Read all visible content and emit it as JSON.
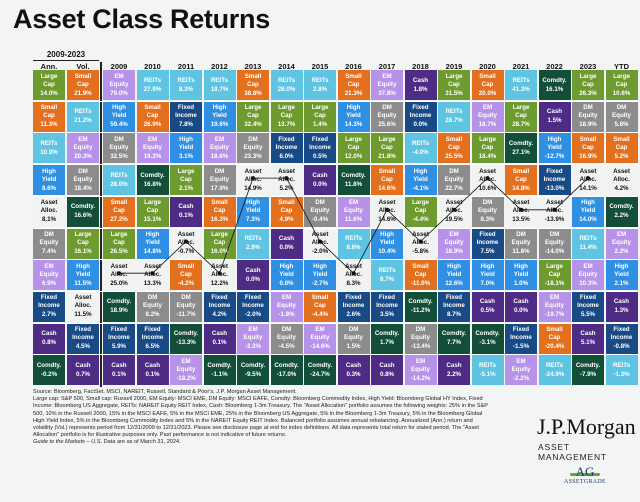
{
  "page": {
    "title": "Asset Class Returns",
    "period_label": "2009-2023",
    "headers": [
      "Ann.",
      "Vol.",
      "2009",
      "2010",
      "2011",
      "2012",
      "2013",
      "2014",
      "2015",
      "2016",
      "2017",
      "2018",
      "2019",
      "2020",
      "2021",
      "2022",
      "2023",
      "YTD"
    ],
    "footnote": {
      "lines": [
        "Source: Bloomberg, FactSet, MSCI, NAREIT, Russell, Standard & Poor's, J.P. Morgan Asset Management.",
        "Large cap: S&P 500, Small cap: Russell 2000, EM Equity: MSCI EME, DM Equity: MSCI EAFE, Comdty: Bloomberg Commodity Index, High Yield: Bloomberg Global HY Index, Fixed Income: Bloomberg US Aggregate, REITs: NAREIT Equity REIT Index, Cash: Bloomberg 1-3m Treasury. The \"Asset Allocation\" portfolio assumes the following weights: 25% in the S&P 500, 10% in the Russell 2000, 15% in the MSCI EAFE, 5% in the MSCI EME, 25% in the Bloomberg US Aggregate, 5% in the Bloomberg 1-3m Treasury, 5% in the Bloomberg Global High Yield Index, 5% in the Bloomberg Commodity Index and 5% in the NAREIT Equity REIT Index. Balanced portfolio assumes annual rebalancing. Annualized (Ann.) return and volatility (Vol.) represents period from 12/31/2009 to 12/31/2023. Please see disclosure page at end for index definitions. All data represents total return for stated period. The \"Asset Allocation\" portfolio is for illustrative purposes only. Past performance is not indicative of future returns."
      ],
      "guide": "Guide to the Markets – U.S.",
      "asof": " Data are as of March 31, 2024."
    },
    "brand": {
      "name": "J.P.Morgan",
      "sub": "ASSET MANAGEMENT"
    },
    "watermark": {
      "mark": "AG",
      "name": "ASSETGRADE"
    }
  },
  "colors": {
    "Large Cap": "#6e9b30",
    "Small Cap": "#e2701f",
    "EM Equity": "#b692e8",
    "REITs": "#5fc3e2",
    "High Yield": "#2f8fe3",
    "Fixed Income": "#184a86",
    "DM Equity": "#8c8c8c",
    "Cash": "#4e2c85",
    "Comdty.": "#134f38",
    "Asset Alloc.": "#f1f2f2"
  },
  "chart_data": {
    "type": "table",
    "title": "Asset Class Returns",
    "columns": [
      "Ann.",
      "Vol.",
      "2009",
      "2010",
      "2011",
      "2012",
      "2013",
      "2014",
      "2015",
      "2016",
      "2017",
      "2018",
      "2019",
      "2020",
      "2021",
      "2022",
      "2023",
      "YTD"
    ],
    "rank_columns": [
      [
        [
          "Large Cap",
          "14.0%"
        ],
        [
          "Small Cap",
          "11.3%"
        ],
        [
          "REITs",
          "10.9%"
        ],
        [
          "High Yield",
          "8.6%"
        ],
        [
          "Asset Alloc.",
          "8.1%"
        ],
        [
          "DM Equity",
          "7.4%"
        ],
        [
          "EM Equity",
          "6.9%"
        ],
        [
          "Fixed Income",
          "2.7%"
        ],
        [
          "Cash",
          "0.8%"
        ],
        [
          "Comdty.",
          "-0.2%"
        ]
      ],
      [
        [
          "Small Cap",
          "21.9%"
        ],
        [
          "REITs",
          "21.2%"
        ],
        [
          "EM Equity",
          "20.3%"
        ],
        [
          "DM Equity",
          "18.4%"
        ],
        [
          "Comdty.",
          "16.6%"
        ],
        [
          "Large Cap",
          "16.1%"
        ],
        [
          "High Yield",
          "11.5%"
        ],
        [
          "Asset Alloc.",
          "11.5%"
        ],
        [
          "Fixed Income",
          "4.5%"
        ],
        [
          "Cash",
          "0.7%"
        ]
      ],
      [
        [
          "EM Equity",
          "79.0%"
        ],
        [
          "High Yield",
          "59.4%"
        ],
        [
          "DM Equity",
          "32.5%"
        ],
        [
          "REITs",
          "28.0%"
        ],
        [
          "Small Cap",
          "27.2%"
        ],
        [
          "Large Cap",
          "26.5%"
        ],
        [
          "Asset Alloc.",
          "25.0%"
        ],
        [
          "Comdty.",
          "18.9%"
        ],
        [
          "Fixed Income",
          "5.9%"
        ],
        [
          "Cash",
          "0.1%"
        ]
      ],
      [
        [
          "REITs",
          "27.9%"
        ],
        [
          "Small Cap",
          "26.9%"
        ],
        [
          "EM Equity",
          "19.2%"
        ],
        [
          "Comdty.",
          "16.8%"
        ],
        [
          "Large Cap",
          "15.1%"
        ],
        [
          "High Yield",
          "14.8%"
        ],
        [
          "Asset Alloc.",
          "13.3%"
        ],
        [
          "DM Equity",
          "8.2%"
        ],
        [
          "Fixed Income",
          "6.5%"
        ],
        [
          "Cash",
          "0.1%"
        ]
      ],
      [
        [
          "REITs",
          "8.3%"
        ],
        [
          "Fixed Income",
          "7.8%"
        ],
        [
          "High Yield",
          "3.1%"
        ],
        [
          "Large Cap",
          "2.1%"
        ],
        [
          "Cash",
          "0.1%"
        ],
        [
          "Asset Alloc.",
          "-0.7%"
        ],
        [
          "Small Cap",
          "-4.2%"
        ],
        [
          "DM Equity",
          "-11.7%"
        ],
        [
          "Comdty.",
          "-13.3%"
        ],
        [
          "EM Equity",
          "-18.2%"
        ]
      ],
      [
        [
          "REITs",
          "19.7%"
        ],
        [
          "High Yield",
          "19.6%"
        ],
        [
          "EM Equity",
          "18.6%"
        ],
        [
          "DM Equity",
          "17.9%"
        ],
        [
          "Small Cap",
          "16.3%"
        ],
        [
          "Large Cap",
          "16.0%"
        ],
        [
          "Asset Alloc.",
          "12.2%"
        ],
        [
          "Fixed Income",
          "4.2%"
        ],
        [
          "Cash",
          "0.1%"
        ],
        [
          "Comdty.",
          "-1.1%"
        ]
      ],
      [
        [
          "Small Cap",
          "38.8%"
        ],
        [
          "Large Cap",
          "32.4%"
        ],
        [
          "DM Equity",
          "23.3%"
        ],
        [
          "Asset Alloc.",
          "14.9%"
        ],
        [
          "High Yield",
          "7.3%"
        ],
        [
          "REITs",
          "2.9%"
        ],
        [
          "Cash",
          "0.0%"
        ],
        [
          "Fixed Income",
          "-2.0%"
        ],
        [
          "EM Equity",
          "-2.3%"
        ],
        [
          "Comdty.",
          "-9.5%"
        ]
      ],
      [
        [
          "REITs",
          "28.0%"
        ],
        [
          "Large Cap",
          "13.7%"
        ],
        [
          "Fixed Income",
          "6.0%"
        ],
        [
          "Asset Alloc.",
          "5.2%"
        ],
        [
          "Small Cap",
          "4.9%"
        ],
        [
          "Cash",
          "0.0%"
        ],
        [
          "High Yield",
          "0.0%"
        ],
        [
          "EM Equity",
          "-1.8%"
        ],
        [
          "DM Equity",
          "-4.5%"
        ],
        [
          "Comdty.",
          "-17.0%"
        ]
      ],
      [
        [
          "REITs",
          "2.8%"
        ],
        [
          "Large Cap",
          "1.4%"
        ],
        [
          "Fixed Income",
          "0.5%"
        ],
        [
          "Cash",
          "0.0%"
        ],
        [
          "DM Equity",
          "-0.4%"
        ],
        [
          "Asset Alloc.",
          "-2.0%"
        ],
        [
          "High Yield",
          "-2.7%"
        ],
        [
          "Small Cap",
          "-4.4%"
        ],
        [
          "EM Equity",
          "-14.6%"
        ],
        [
          "Comdty.",
          "-24.7%"
        ]
      ],
      [
        [
          "Small Cap",
          "21.3%"
        ],
        [
          "High Yield",
          "14.3%"
        ],
        [
          "Large Cap",
          "12.0%"
        ],
        [
          "Comdty.",
          "11.8%"
        ],
        [
          "EM Equity",
          "11.6%"
        ],
        [
          "REITs",
          "8.6%"
        ],
        [
          "Asset Alloc.",
          "8.3%"
        ],
        [
          "Fixed Income",
          "2.6%"
        ],
        [
          "DM Equity",
          "1.5%"
        ],
        [
          "Cash",
          "0.3%"
        ]
      ],
      [
        [
          "EM Equity",
          "37.8%"
        ],
        [
          "DM Equity",
          "25.6%"
        ],
        [
          "Large Cap",
          "21.8%"
        ],
        [
          "Small Cap",
          "14.6%"
        ],
        [
          "Asset Alloc.",
          "14.6%"
        ],
        [
          "High Yield",
          "10.4%"
        ],
        [
          "REITs",
          "8.7%"
        ],
        [
          "Fixed Income",
          "3.5%"
        ],
        [
          "Comdty.",
          "1.7%"
        ],
        [
          "Cash",
          "0.8%"
        ]
      ],
      [
        [
          "Cash",
          "1.8%"
        ],
        [
          "Fixed Income",
          "0.0%"
        ],
        [
          "REITs",
          "-4.0%"
        ],
        [
          "High Yield",
          "-4.1%"
        ],
        [
          "Large Cap",
          "-4.4%"
        ],
        [
          "Asset Alloc.",
          "-5.8%"
        ],
        [
          "Small Cap",
          "-11.0%"
        ],
        [
          "Comdty.",
          "-11.2%"
        ],
        [
          "DM Equity",
          "-13.4%"
        ],
        [
          "EM Equity",
          "-14.2%"
        ]
      ],
      [
        [
          "Large Cap",
          "31.5%"
        ],
        [
          "REITs",
          "28.7%"
        ],
        [
          "Small Cap",
          "25.5%"
        ],
        [
          "DM Equity",
          "22.7%"
        ],
        [
          "Asset Alloc.",
          "19.5%"
        ],
        [
          "EM Equity",
          "18.9%"
        ],
        [
          "High Yield",
          "12.6%"
        ],
        [
          "Fixed Income",
          "8.7%"
        ],
        [
          "Comdty.",
          "7.7%"
        ],
        [
          "Cash",
          "2.2%"
        ]
      ],
      [
        [
          "Small Cap",
          "20.0%"
        ],
        [
          "EM Equity",
          "18.7%"
        ],
        [
          "Large Cap",
          "18.4%"
        ],
        [
          "Asset Alloc.",
          "10.6%"
        ],
        [
          "DM Equity",
          "8.3%"
        ],
        [
          "Fixed Income",
          "7.5%"
        ],
        [
          "High Yield",
          "7.0%"
        ],
        [
          "Cash",
          "0.5%"
        ],
        [
          "Comdty.",
          "-3.1%"
        ],
        [
          "REITs",
          "-5.1%"
        ]
      ],
      [
        [
          "REITs",
          "41.3%"
        ],
        [
          "Large Cap",
          "28.7%"
        ],
        [
          "Comdty.",
          "27.1%"
        ],
        [
          "Small Cap",
          "14.8%"
        ],
        [
          "Asset Alloc.",
          "13.5%"
        ],
        [
          "DM Equity",
          "11.8%"
        ],
        [
          "High Yield",
          "1.0%"
        ],
        [
          "Cash",
          "0.0%"
        ],
        [
          "Fixed Income",
          "-1.5%"
        ],
        [
          "EM Equity",
          "-2.2%"
        ]
      ],
      [
        [
          "Comdty.",
          "16.1%"
        ],
        [
          "Cash",
          "1.5%"
        ],
        [
          "High Yield",
          "-12.7%"
        ],
        [
          "Fixed Income",
          "-13.0%"
        ],
        [
          "Asset Alloc.",
          "-13.9%"
        ],
        [
          "DM Equity",
          "-14.0%"
        ],
        [
          "Large Cap",
          "-18.1%"
        ],
        [
          "EM Equity",
          "-19.7%"
        ],
        [
          "Small Cap",
          "-20.4%"
        ],
        [
          "REITs",
          "-24.9%"
        ]
      ],
      [
        [
          "Large Cap",
          "26.3%"
        ],
        [
          "DM Equity",
          "18.9%"
        ],
        [
          "Small Cap",
          "16.9%"
        ],
        [
          "Asset Alloc.",
          "14.1%"
        ],
        [
          "High Yield",
          "14.0%"
        ],
        [
          "REITs",
          "11.4%"
        ],
        [
          "EM Equity",
          "10.3%"
        ],
        [
          "Fixed Income",
          "5.5%"
        ],
        [
          "Cash",
          "5.1%"
        ],
        [
          "Comdty.",
          "-7.9%"
        ]
      ],
      [
        [
          "Large Cap",
          "10.6%"
        ],
        [
          "DM Equity",
          "5.8%"
        ],
        [
          "Small Cap",
          "5.2%"
        ],
        [
          "Asset Alloc.",
          "4.2%"
        ],
        [
          "Comdty.",
          "2.2%"
        ],
        [
          "EM Equity",
          "2.2%"
        ],
        [
          "High Yield",
          "2.1%"
        ],
        [
          "Cash",
          "1.3%"
        ],
        [
          "Fixed Income",
          "-0.8%"
        ],
        [
          "REITs",
          "-1.3%"
        ]
      ]
    ],
    "asset_alloc_line_years": [
      "2009",
      "2010",
      "2011",
      "2012",
      "2013",
      "2014",
      "2015",
      "2016",
      "2017",
      "2018",
      "2019",
      "2020",
      "2021",
      "2022",
      "2023"
    ],
    "asset_alloc_returns": [
      25.0,
      13.3,
      -0.7,
      12.2,
      14.9,
      5.2,
      -2.0,
      8.3,
      14.6,
      -5.8,
      19.5,
      10.6,
      13.5,
      -13.9,
      14.1
    ],
    "legend": [
      "Large Cap",
      "Small Cap",
      "EM Equity",
      "DM Equity",
      "REITs",
      "High Yield",
      "Fixed Income",
      "Cash",
      "Comdty.",
      "Asset Alloc."
    ]
  }
}
